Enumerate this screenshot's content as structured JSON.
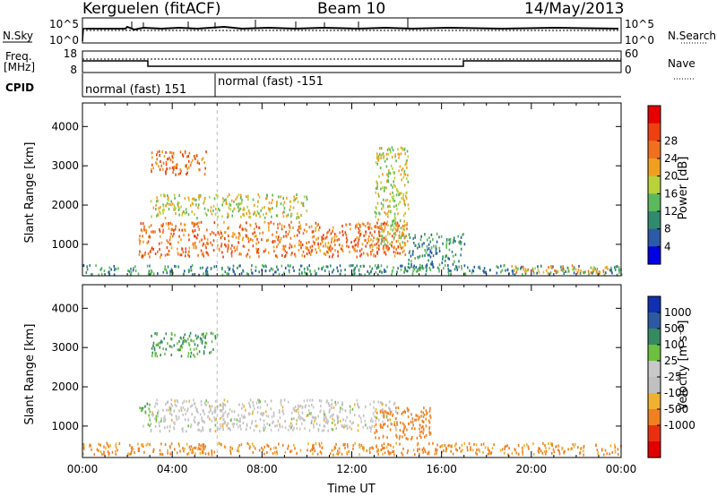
{
  "header": {
    "station": "Kerguelen (fitACF)",
    "beam": "Beam 10",
    "date": "14/May/2013"
  },
  "top_panels": {
    "nsky_label": "N.Sky",
    "nsky_ticks": [
      "10^5",
      "10^0"
    ],
    "nsearch_label": "N.Search",
    "nsearch_ticks": [
      "10^5",
      "10^0"
    ],
    "freq_label_1": "Freq.",
    "freq_label_2": "[MHz]",
    "freq_ticks": [
      "18",
      "8"
    ],
    "nave_label": "Nave",
    "nave_ticks": [
      "60",
      "0"
    ],
    "cpid_label": "CPID",
    "cpid_modes": [
      "normal (fast) 151",
      "normal (fast) -151"
    ]
  },
  "colors": {
    "power_scale": [
      "#0000e0",
      "#2a5aa8",
      "#2f8a6e",
      "#5cb85c",
      "#b9d23a",
      "#f0a020",
      "#f07020",
      "#ee4010",
      "#e60000"
    ],
    "velocity_scale": [
      "#1030b0",
      "#2c5aa0",
      "#358a60",
      "#6cc040",
      "#c8c8c8",
      "#c0c0c0",
      "#f0b030",
      "#f08020",
      "#e83010",
      "#e00000"
    ]
  },
  "chart_data": [
    {
      "type": "heatmap",
      "name": "power",
      "ylabel": "Slant Range [km]",
      "yticks": [
        "1000",
        "2000",
        "3000",
        "4000"
      ],
      "ylim": [
        200,
        4600
      ],
      "colorbar_label": "Power [dB]",
      "colorbar_ticks": [
        "4",
        "8",
        "12",
        "16",
        "20",
        "24",
        "28"
      ],
      "colorbar_range": [
        0,
        32
      ],
      "xlim_hours": [
        0,
        24
      ],
      "echo_regions": [
        {
          "t": [
            2.5,
            14.5
          ],
          "range_km": [
            700,
            1600
          ],
          "level_db": 24
        },
        {
          "t": [
            3.0,
            10.0
          ],
          "range_km": [
            1700,
            2300
          ],
          "level_db": 16
        },
        {
          "t": [
            3.0,
            5.5
          ],
          "range_km": [
            2800,
            3400
          ],
          "level_db": 24
        },
        {
          "t": [
            13.0,
            14.5
          ],
          "range_km": [
            1000,
            3500
          ],
          "level_db": 16
        },
        {
          "t": [
            14.5,
            17.0
          ],
          "range_km": [
            400,
            1300
          ],
          "level_db": 8
        },
        {
          "t": [
            0.0,
            24.0
          ],
          "range_km": [
            250,
            500
          ],
          "level_db": 8
        },
        {
          "t": [
            19.0,
            23.5
          ],
          "range_km": [
            300,
            500
          ],
          "level_db": 20
        }
      ]
    },
    {
      "type": "heatmap",
      "name": "velocity",
      "xlabel": "Time UT",
      "xticks": [
        "00:00",
        "04:00",
        "08:00",
        "12:00",
        "16:00",
        "20:00",
        "00:00"
      ],
      "ylabel": "Slant Range [km]",
      "yticks": [
        "1000",
        "2000",
        "3000",
        "4000"
      ],
      "ylim": [
        200,
        4600
      ],
      "colorbar_label": "Velocity [m s⁻¹]",
      "colorbar_ticks": [
        "1000",
        "500",
        "100",
        "25",
        "-25",
        "-100",
        "-500",
        "-1000"
      ],
      "xlim_hours": [
        0,
        24
      ],
      "echo_regions": [
        {
          "t": [
            3.0,
            14.0
          ],
          "range_km": [
            900,
            1700
          ],
          "velocity": 0
        },
        {
          "t": [
            3.0,
            6.0
          ],
          "range_km": [
            2800,
            3400
          ],
          "velocity": 100
        },
        {
          "t": [
            13.0,
            15.5
          ],
          "range_km": [
            700,
            1500
          ],
          "velocity": -300
        },
        {
          "t": [
            0.0,
            24.0
          ],
          "range_km": [
            300,
            600
          ],
          "velocity": -150
        },
        {
          "t": [
            2.5,
            3.0
          ],
          "range_km": [
            1000,
            1600
          ],
          "velocity": 60
        }
      ]
    }
  ]
}
